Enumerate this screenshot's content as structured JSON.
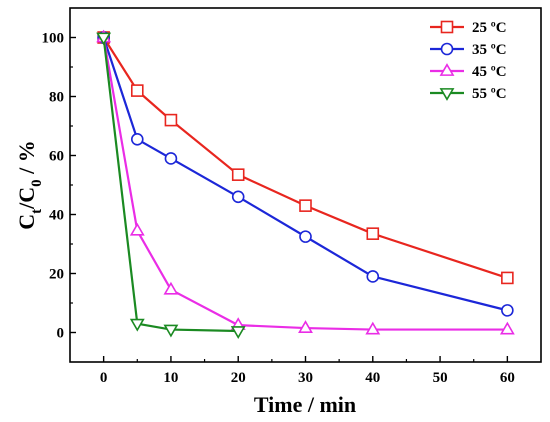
{
  "chart_data": {
    "type": "line",
    "title": "",
    "xlabel": "Time / min",
    "ylabel_main": "C",
    "ylabel_sub1": "t",
    "ylabel_mid": "/C",
    "ylabel_sub2": "0",
    "ylabel_tail": " / %",
    "xlim": [
      -5,
      65
    ],
    "ylim": [
      -10,
      110
    ],
    "xticks": [
      0,
      10,
      20,
      30,
      40,
      50,
      60
    ],
    "yticks": [
      0,
      20,
      40,
      60,
      80,
      100
    ],
    "grid": false,
    "legend_position": "top-right",
    "series": [
      {
        "name": "25 ºC",
        "color": "#e8261f",
        "marker": "square",
        "x": [
          0,
          5,
          10,
          20,
          30,
          40,
          60
        ],
        "y": [
          100,
          82,
          72,
          53.5,
          43,
          33.5,
          18.5
        ]
      },
      {
        "name": "35 ºC",
        "color": "#1c27d8",
        "marker": "circle",
        "x": [
          0,
          5,
          10,
          20,
          30,
          40,
          60
        ],
        "y": [
          100,
          65.5,
          59,
          46,
          32.5,
          19,
          7.5
        ]
      },
      {
        "name": "45 ºC",
        "color": "#ea2de6",
        "marker": "triangle-up",
        "x": [
          0,
          5,
          10,
          20,
          30,
          40,
          60
        ],
        "y": [
          100,
          34.5,
          14.5,
          2.5,
          1.5,
          1,
          1
        ]
      },
      {
        "name": "55 ºC",
        "color": "#1b8a22",
        "marker": "triangle-down",
        "x": [
          0,
          5,
          10,
          20
        ],
        "y": [
          100,
          3,
          1,
          0.5
        ]
      }
    ]
  }
}
